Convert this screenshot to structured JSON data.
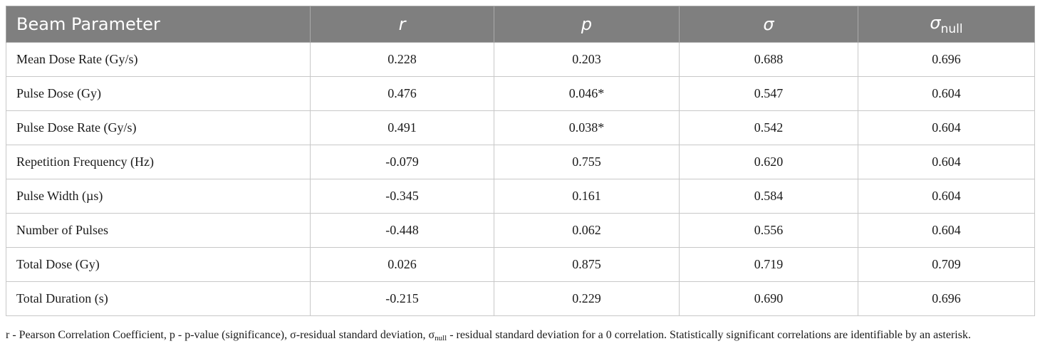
{
  "table": {
    "headers": [
      {
        "label": "Beam Parameter",
        "italic": false,
        "sub": ""
      },
      {
        "label": "r",
        "italic": true,
        "sub": ""
      },
      {
        "label": "p",
        "italic": true,
        "sub": ""
      },
      {
        "label": "σ",
        "italic": true,
        "sub": ""
      },
      {
        "label": "σ",
        "italic": true,
        "sub": "null"
      }
    ],
    "rows": [
      [
        "Mean Dose Rate (Gy/s)",
        "0.228",
        "0.203",
        "0.688",
        "0.696"
      ],
      [
        "Pulse Dose (Gy)",
        "0.476",
        "0.046*",
        "0.547",
        "0.604"
      ],
      [
        "Pulse Dose Rate (Gy/s)",
        "0.491",
        "0.038*",
        "0.542",
        "0.604"
      ],
      [
        "Repetition Frequency (Hz)",
        "-0.079",
        "0.755",
        "0.620",
        "0.604"
      ],
      [
        "Pulse Width (µs)",
        "-0.345",
        "0.161",
        "0.584",
        "0.604"
      ],
      [
        "Number of Pulses",
        "-0.448",
        "0.062",
        "0.556",
        "0.604"
      ],
      [
        "Total Dose (Gy)",
        "0.026",
        "0.875",
        "0.719",
        "0.709"
      ],
      [
        "Total Duration (s)",
        "-0.215",
        "0.229",
        "0.690",
        "0.696"
      ]
    ]
  },
  "caption": {
    "part1": "r - Pearson Correlation Coefficient, p - p-value (significance), σ-residual standard deviation, σ",
    "sub": "null",
    "part2": " - residual standard deviation for a 0 correlation. Statistically significant correlations are identifiable by an asterisk."
  }
}
